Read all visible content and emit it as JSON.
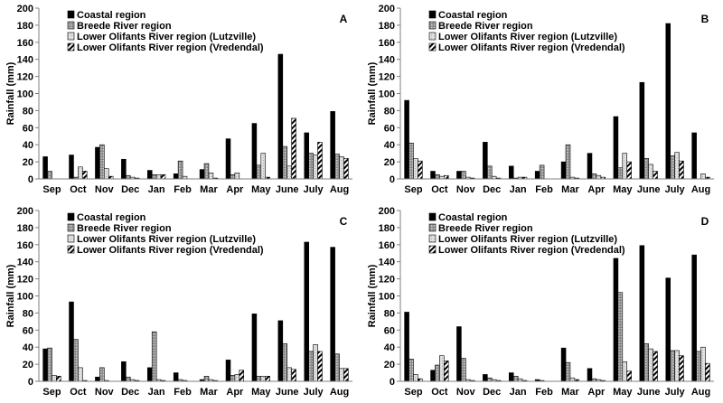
{
  "colors": {
    "coastal": "#000000",
    "breede": "#9a9a9a",
    "lutz": "#d8d8d8",
    "vred": "#ffffff",
    "stroke": "#000000",
    "axis": "#7f7f7f"
  },
  "chart_data": [
    {
      "type": "bar",
      "panel_label": "A",
      "categories": [
        "Sep",
        "Oct",
        "Nov",
        "Dec",
        "Jan",
        "Feb",
        "Mar",
        "Apr",
        "May",
        "June",
        "July",
        "Aug"
      ],
      "ylabel": "Rainfall (mm)",
      "ylim": [
        0,
        200
      ],
      "yticks": [
        "0",
        "20",
        "40",
        "60",
        "80",
        "100",
        "120",
        "140",
        "160",
        "180",
        "200"
      ],
      "legend_position": "top-left",
      "series": [
        {
          "name": "Coastal region",
          "values": [
            26,
            28,
            37,
            23,
            10,
            6,
            11,
            47,
            65,
            146,
            54,
            79
          ]
        },
        {
          "name": "Breede River region",
          "values": [
            9,
            2,
            40,
            4,
            5,
            21,
            18,
            5,
            16,
            38,
            30,
            29
          ]
        },
        {
          "name": "Lower Olifants River region (Lutzville)",
          "values": [
            0,
            14,
            12,
            2,
            5,
            3,
            7,
            7,
            30,
            15,
            28,
            26
          ]
        },
        {
          "name": "Lower Olifants River region (Vredendal)",
          "values": [
            0,
            9,
            3,
            1,
            5,
            0,
            1,
            0,
            2,
            71,
            43,
            24
          ]
        }
      ]
    },
    {
      "type": "bar",
      "panel_label": "B",
      "categories": [
        "Sep",
        "Oct",
        "Nov",
        "Dec",
        "Jan",
        "Feb",
        "Mar",
        "Apr",
        "May",
        "June",
        "July",
        "Aug"
      ],
      "ylabel": "Rainfall (mm)",
      "ylim": [
        0,
        200
      ],
      "yticks": [
        "0",
        "20",
        "40",
        "60",
        "80",
        "100",
        "120",
        "140",
        "160",
        "180",
        "200"
      ],
      "legend_position": "top-left",
      "series": [
        {
          "name": "Coastal region",
          "values": [
            92,
            9,
            9,
            43,
            15,
            9,
            20,
            30,
            73,
            113,
            182,
            54
          ]
        },
        {
          "name": "Breede River region",
          "values": [
            42,
            5,
            9,
            15,
            1,
            16,
            40,
            6,
            13,
            24,
            27,
            0
          ]
        },
        {
          "name": "Lower Olifants River region (Lutzville)",
          "values": [
            24,
            3,
            2,
            3,
            2,
            0,
            2,
            4,
            30,
            17,
            31,
            6
          ]
        },
        {
          "name": "Lower Olifants River region (Vredendal)",
          "values": [
            21,
            4,
            1,
            1,
            2,
            0,
            1,
            2,
            20,
            9,
            21,
            2
          ]
        }
      ]
    },
    {
      "type": "bar",
      "panel_label": "C",
      "categories": [
        "Sep",
        "Oct",
        "Nov",
        "Dec",
        "Jan",
        "Feb",
        "Mar",
        "Apr",
        "May",
        "June",
        "July",
        "Aug"
      ],
      "ylabel": "Rainfall (mm)",
      "ylim": [
        0,
        200
      ],
      "yticks": [
        "0",
        "20",
        "40",
        "60",
        "80",
        "100",
        "120",
        "140",
        "160",
        "180",
        "200"
      ],
      "legend_position": "top-left",
      "series": [
        {
          "name": "Coastal region",
          "values": [
            38,
            93,
            5,
            23,
            16,
            10,
            2,
            25,
            79,
            71,
            163,
            157
          ]
        },
        {
          "name": "Breede River region",
          "values": [
            39,
            49,
            16,
            5,
            58,
            2,
            6,
            7,
            6,
            44,
            35,
            32
          ]
        },
        {
          "name": "Lower Olifants River region (Lutzville)",
          "values": [
            7,
            16,
            1,
            2,
            2,
            1,
            2,
            8,
            6,
            16,
            43,
            15
          ]
        },
        {
          "name": "Lower Olifants River region (Vredendal)",
          "values": [
            6,
            1,
            0,
            1,
            1,
            0,
            1,
            13,
            6,
            14,
            35,
            15
          ]
        }
      ]
    },
    {
      "type": "bar",
      "panel_label": "D",
      "categories": [
        "Sep",
        "Oct",
        "Nov",
        "Dec",
        "Jan",
        "Feb",
        "Mar",
        "Apr",
        "May",
        "June",
        "July",
        "Aug"
      ],
      "ylabel": "Rainfall (mm)",
      "ylim": [
        0,
        200
      ],
      "yticks": [
        "0",
        "20",
        "40",
        "60",
        "80",
        "100",
        "120",
        "140",
        "160",
        "180",
        "200"
      ],
      "legend_position": "top-left",
      "series": [
        {
          "name": "Coastal region",
          "values": [
            81,
            13,
            64,
            8,
            10,
            2,
            39,
            15,
            144,
            159,
            121,
            148
          ]
        },
        {
          "name": "Breede River region",
          "values": [
            26,
            19,
            27,
            4,
            6,
            1,
            22,
            3,
            104,
            44,
            36,
            35
          ]
        },
        {
          "name": "Lower Olifants River region (Lutzville)",
          "values": [
            8,
            30,
            2,
            2,
            3,
            0,
            4,
            2,
            23,
            38,
            36,
            40
          ]
        },
        {
          "name": "Lower Olifants River region (Vredendal)",
          "values": [
            3,
            24,
            1,
            1,
            1,
            0,
            2,
            1,
            12,
            35,
            30,
            21
          ]
        }
      ]
    }
  ]
}
